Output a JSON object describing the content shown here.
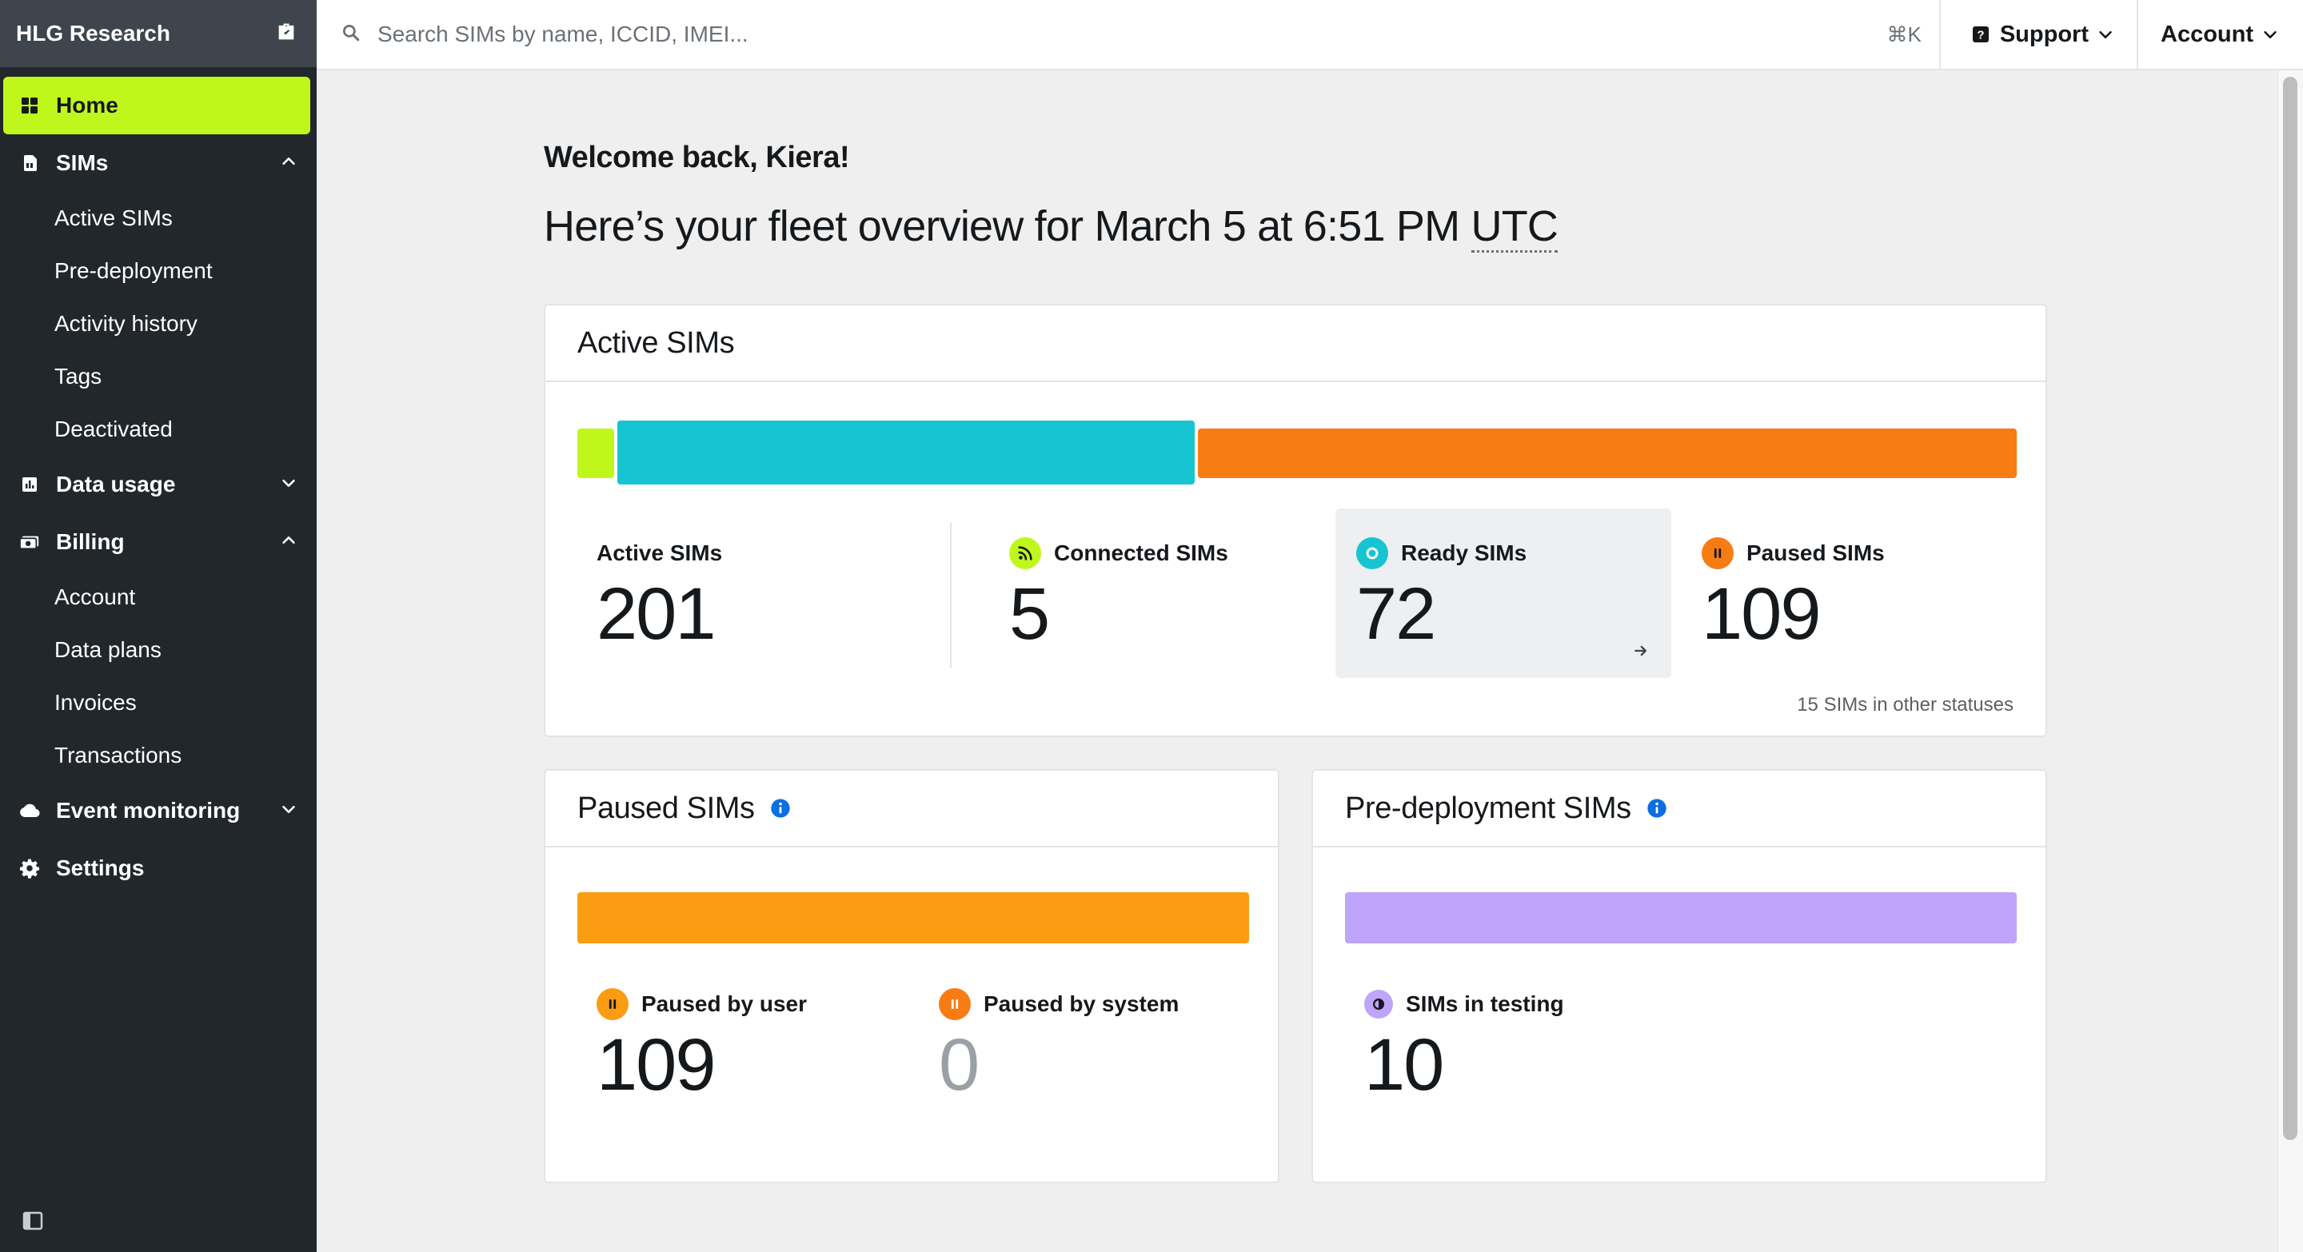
{
  "sidebar": {
    "org_name": "HLG Research",
    "items": {
      "home": "Home",
      "sims": "SIMs",
      "data_usage": "Data usage",
      "billing": "Billing",
      "event_monitoring": "Event monitoring",
      "settings": "Settings"
    },
    "sims_sub": [
      "Active SIMs",
      "Pre-deployment",
      "Activity history",
      "Tags",
      "Deactivated"
    ],
    "billing_sub": [
      "Account",
      "Data plans",
      "Invoices",
      "Transactions"
    ]
  },
  "topbar": {
    "search_placeholder": "Search SIMs by name, ICCID, IMEI...",
    "shortcut": "⌘K",
    "support_label": "Support",
    "account_label": "Account"
  },
  "main": {
    "welcome": "Welcome back, Kiera!",
    "overview_prefix": "Here’s your fleet overview for March 5 at 6:51 PM",
    "timezone": "UTC"
  },
  "active_card": {
    "title": "Active SIMs",
    "total_label": "Active SIMs",
    "total_value": "201",
    "connected_label": "Connected SIMs",
    "connected_value": "5",
    "ready_label": "Ready SIMs",
    "ready_value": "72",
    "paused_label": "Paused SIMs",
    "paused_value": "109",
    "other_note": "15 SIMs in other statuses",
    "bar_segments": [
      {
        "name": "Connected",
        "value": 5,
        "color": "#bff71d"
      },
      {
        "name": "Ready",
        "value": 72,
        "color": "#17c4d1"
      },
      {
        "name": "Paused",
        "value": 109,
        "color": "#f77c14"
      }
    ]
  },
  "paused_card": {
    "title": "Paused SIMs",
    "by_user_label": "Paused by user",
    "by_user_value": "109",
    "by_system_label": "Paused by system",
    "by_system_value": "0",
    "bar_color": "#fa9d12"
  },
  "predeploy_card": {
    "title": "Pre-deployment SIMs",
    "testing_label": "SIMs in testing",
    "testing_value": "10",
    "bar_color": "#bfa4fb"
  },
  "colors": {
    "accent": "#bff71d",
    "sidebar_bg": "#22272c",
    "info_blue": "#0a6fe0"
  }
}
